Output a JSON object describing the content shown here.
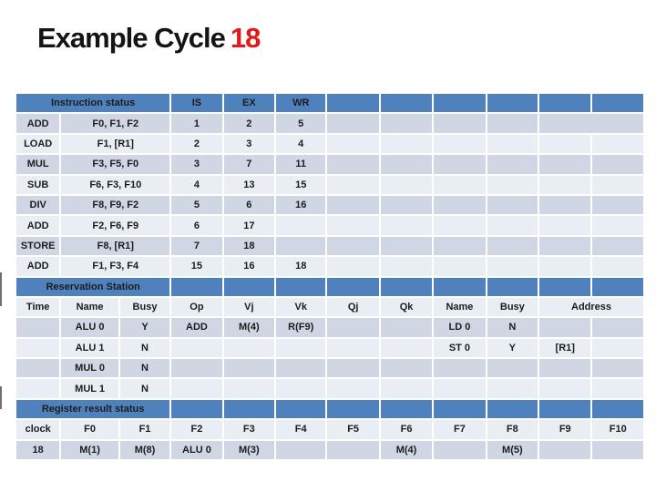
{
  "title": {
    "main": "Example Cycle",
    "highlight": "18"
  },
  "colors": {
    "header_blue": "#4f81bd",
    "band_dark": "#d0d6e4",
    "band_light": "#e9edf4",
    "accent_red": "#cc2127",
    "title_red": "#e01a1a"
  },
  "table": {
    "sections": [
      "Instruction status",
      "Reservation Station",
      "Register result status"
    ],
    "rows": [
      {
        "name": "instruction-header-row",
        "kind": "header",
        "cells": [
          {
            "t": "Instruction status",
            "span": 3,
            "align": "left",
            "name": "instruction-status-header"
          },
          {
            "t": "IS",
            "name": "col-is"
          },
          {
            "t": "EX",
            "name": "col-ex"
          },
          {
            "t": "WR",
            "name": "col-wr"
          },
          {
            "t": ""
          },
          {
            "t": ""
          },
          {
            "t": ""
          },
          {
            "t": ""
          },
          {
            "t": ""
          },
          {
            "t": ""
          }
        ]
      },
      {
        "name": "instruction-row",
        "kind": "dark",
        "cells": [
          {
            "t": "ADD",
            "align": "left"
          },
          {
            "t": "F0, F1, F2",
            "span": 2,
            "align": "left"
          },
          {
            "t": "1"
          },
          {
            "t": "2"
          },
          {
            "t": "5"
          },
          {
            "t": ""
          },
          {
            "t": ""
          },
          {
            "t": ""
          },
          {
            "t": ""
          },
          {
            "t": "",
            "span": 2
          }
        ]
      },
      {
        "name": "instruction-row",
        "kind": "light",
        "cells": [
          {
            "t": "LOAD",
            "align": "left"
          },
          {
            "t": "F1, [R1]",
            "span": 2,
            "align": "left"
          },
          {
            "t": "2"
          },
          {
            "t": "3"
          },
          {
            "t": "4"
          },
          {
            "t": ""
          },
          {
            "t": ""
          },
          {
            "t": ""
          },
          {
            "t": ""
          },
          {
            "t": ""
          },
          {
            "t": ""
          }
        ]
      },
      {
        "name": "instruction-row",
        "kind": "dark",
        "cells": [
          {
            "t": "MUL",
            "align": "left"
          },
          {
            "t": "F3, F5, F0",
            "span": 2,
            "align": "left"
          },
          {
            "t": "3"
          },
          {
            "t": "7"
          },
          {
            "t": "11"
          },
          {
            "t": ""
          },
          {
            "t": ""
          },
          {
            "t": ""
          },
          {
            "t": ""
          },
          {
            "t": ""
          },
          {
            "t": ""
          }
        ]
      },
      {
        "name": "instruction-row",
        "kind": "light",
        "cells": [
          {
            "t": "SUB",
            "align": "left"
          },
          {
            "t": "F6, F3, F10",
            "span": 2,
            "align": "left"
          },
          {
            "t": "4"
          },
          {
            "t": "13"
          },
          {
            "t": "15"
          },
          {
            "t": ""
          },
          {
            "t": ""
          },
          {
            "t": ""
          },
          {
            "t": ""
          },
          {
            "t": ""
          },
          {
            "t": ""
          }
        ]
      },
      {
        "name": "instruction-row",
        "kind": "dark",
        "cells": [
          {
            "t": "DIV",
            "align": "left"
          },
          {
            "t": "F8, F9, F2",
            "span": 2,
            "align": "left"
          },
          {
            "t": "5"
          },
          {
            "t": "6"
          },
          {
            "t": "16"
          },
          {
            "t": ""
          },
          {
            "t": ""
          },
          {
            "t": ""
          },
          {
            "t": ""
          },
          {
            "t": ""
          },
          {
            "t": ""
          }
        ]
      },
      {
        "name": "instruction-row",
        "kind": "light",
        "cells": [
          {
            "t": "ADD",
            "align": "left"
          },
          {
            "t": "F2, F6, F9",
            "span": 2,
            "align": "left"
          },
          {
            "t": "6"
          },
          {
            "t": "17"
          },
          {
            "t": ""
          },
          {
            "t": ""
          },
          {
            "t": ""
          },
          {
            "t": ""
          },
          {
            "t": ""
          },
          {
            "t": ""
          },
          {
            "t": ""
          }
        ]
      },
      {
        "name": "instruction-row",
        "kind": "dark",
        "cells": [
          {
            "t": "STORE",
            "align": "left"
          },
          {
            "t": "F8, [R1]",
            "span": 2,
            "align": "left"
          },
          {
            "t": "7"
          },
          {
            "t": "18",
            "red": true
          },
          {
            "t": ""
          },
          {
            "t": ""
          },
          {
            "t": ""
          },
          {
            "t": ""
          },
          {
            "t": ""
          },
          {
            "t": ""
          },
          {
            "t": ""
          }
        ]
      },
      {
        "name": "instruction-row",
        "kind": "light",
        "cells": [
          {
            "t": "ADD",
            "align": "left"
          },
          {
            "t": "F1, F3, F4",
            "span": 2,
            "align": "left"
          },
          {
            "t": "15"
          },
          {
            "t": "16"
          },
          {
            "t": "18",
            "red": true
          },
          {
            "t": ""
          },
          {
            "t": ""
          },
          {
            "t": ""
          },
          {
            "t": ""
          },
          {
            "t": ""
          },
          {
            "t": ""
          }
        ]
      },
      {
        "name": "reservation-station-header-row",
        "kind": "header",
        "cells": [
          {
            "t": "Reservation Station",
            "span": 3,
            "align": "left",
            "name": "reservation-station-header"
          },
          {
            "t": ""
          },
          {
            "t": ""
          },
          {
            "t": ""
          },
          {
            "t": ""
          },
          {
            "t": ""
          },
          {
            "t": ""
          },
          {
            "t": ""
          },
          {
            "t": ""
          },
          {
            "t": ""
          }
        ]
      },
      {
        "name": "rs-column-header-row",
        "kind": "light",
        "cells": [
          {
            "t": "Time",
            "name": "col-time"
          },
          {
            "t": "Name",
            "name": "col-name"
          },
          {
            "t": "Busy",
            "name": "col-busy"
          },
          {
            "t": "Op",
            "name": "col-op"
          },
          {
            "t": "Vj",
            "name": "col-vj"
          },
          {
            "t": "Vk",
            "name": "col-vk"
          },
          {
            "t": "Qj",
            "name": "col-qj"
          },
          {
            "t": "Qk",
            "name": "col-qk"
          },
          {
            "t": "Name",
            "name": "col-name2"
          },
          {
            "t": "Busy",
            "name": "col-busy2"
          },
          {
            "t": "Address",
            "span": 2,
            "name": "col-address"
          }
        ]
      },
      {
        "name": "rs-row",
        "kind": "dark",
        "cells": [
          {
            "t": ""
          },
          {
            "t": "ALU 0"
          },
          {
            "t": "Y"
          },
          {
            "t": "ADD"
          },
          {
            "t": "M(4)"
          },
          {
            "t": "R(F9)"
          },
          {
            "t": ""
          },
          {
            "t": ""
          },
          {
            "t": "LD 0"
          },
          {
            "t": "N"
          },
          {
            "t": ""
          },
          {
            "t": ""
          }
        ]
      },
      {
        "name": "rs-row",
        "kind": "light",
        "cells": [
          {
            "t": ""
          },
          {
            "t": "ALU 1"
          },
          {
            "t": "N",
            "red": true
          },
          {
            "t": ""
          },
          {
            "t": ""
          },
          {
            "t": ""
          },
          {
            "t": ""
          },
          {
            "t": ""
          },
          {
            "t": "ST 0"
          },
          {
            "t": "Y"
          },
          {
            "t": "[R1]",
            "align": "left"
          },
          {
            "t": ""
          }
        ]
      },
      {
        "name": "rs-row",
        "kind": "dark",
        "cells": [
          {
            "t": ""
          },
          {
            "t": "MUL 0"
          },
          {
            "t": "N"
          },
          {
            "t": ""
          },
          {
            "t": ""
          },
          {
            "t": ""
          },
          {
            "t": ""
          },
          {
            "t": ""
          },
          {
            "t": ""
          },
          {
            "t": ""
          },
          {
            "t": ""
          },
          {
            "t": ""
          }
        ]
      },
      {
        "name": "rs-row",
        "kind": "light",
        "cells": [
          {
            "t": ""
          },
          {
            "t": "MUL 1"
          },
          {
            "t": "N"
          },
          {
            "t": ""
          },
          {
            "t": ""
          },
          {
            "t": ""
          },
          {
            "t": ""
          },
          {
            "t": ""
          },
          {
            "t": ""
          },
          {
            "t": ""
          },
          {
            "t": ""
          },
          {
            "t": ""
          }
        ]
      },
      {
        "name": "register-result-header-row",
        "kind": "header",
        "cells": [
          {
            "t": "Register result status",
            "span": 3,
            "align": "left",
            "name": "register-result-status-header"
          },
          {
            "t": ""
          },
          {
            "t": ""
          },
          {
            "t": ""
          },
          {
            "t": ""
          },
          {
            "t": ""
          },
          {
            "t": ""
          },
          {
            "t": ""
          },
          {
            "t": ""
          },
          {
            "t": ""
          }
        ]
      },
      {
        "name": "rrs-column-header-row",
        "kind": "light",
        "cells": [
          {
            "t": "clock",
            "name": "col-clock"
          },
          {
            "t": "F0"
          },
          {
            "t": "F1"
          },
          {
            "t": "F2"
          },
          {
            "t": "F3"
          },
          {
            "t": "F4"
          },
          {
            "t": "F5"
          },
          {
            "t": "F6"
          },
          {
            "t": "F7"
          },
          {
            "t": "F8"
          },
          {
            "t": "F9"
          },
          {
            "t": "F10"
          }
        ]
      },
      {
        "name": "rrs-value-row",
        "kind": "dark",
        "cells": [
          {
            "t": "18"
          },
          {
            "t": "M(1)"
          },
          {
            "t": "M(8)",
            "red": true
          },
          {
            "t": "ALU 0"
          },
          {
            "t": "M(3)"
          },
          {
            "t": ""
          },
          {
            "t": ""
          },
          {
            "t": "M(4)"
          },
          {
            "t": ""
          },
          {
            "t": "M(5)"
          },
          {
            "t": ""
          },
          {
            "t": ""
          }
        ]
      }
    ]
  }
}
